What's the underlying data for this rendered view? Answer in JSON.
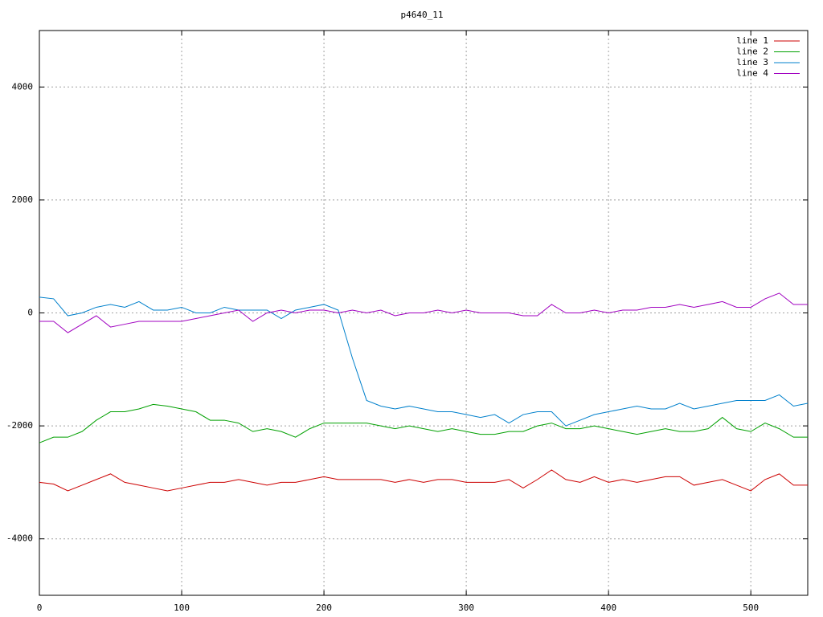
{
  "chart_data": {
    "type": "line",
    "title": "p4640_11",
    "x": [
      0,
      10,
      20,
      30,
      40,
      50,
      60,
      70,
      80,
      90,
      100,
      110,
      120,
      130,
      140,
      150,
      160,
      170,
      180,
      190,
      200,
      210,
      220,
      230,
      240,
      250,
      260,
      270,
      280,
      290,
      300,
      310,
      320,
      330,
      340,
      350,
      360,
      370,
      380,
      390,
      400,
      410,
      420,
      430,
      440,
      450,
      460,
      470,
      480,
      490,
      500,
      510,
      520,
      530,
      540
    ],
    "series": [
      {
        "name": "line 1",
        "color": "#cc0000",
        "values": [
          -3000,
          -3030,
          -3150,
          -3050,
          -2950,
          -2850,
          -3000,
          -3050,
          -3100,
          -3150,
          -3100,
          -3050,
          -3000,
          -3000,
          -2950,
          -3000,
          -3050,
          -3000,
          -3000,
          -2950,
          -2900,
          -2950,
          -2950,
          -2950,
          -2950,
          -3000,
          -2950,
          -3000,
          -2950,
          -2950,
          -3000,
          -3000,
          -3000,
          -2950,
          -3100,
          -2950,
          -2780,
          -2950,
          -3000,
          -2900,
          -3000,
          -2950,
          -3000,
          -2950,
          -2900,
          -2900,
          -3050,
          -3000,
          -2950,
          -3050,
          -3150,
          -2950,
          -2850,
          -3050,
          -3050
        ]
      },
      {
        "name": "line 2",
        "color": "#00a000",
        "values": [
          -2300,
          -2200,
          -2200,
          -2100,
          -1900,
          -1750,
          -1750,
          -1700,
          -1620,
          -1650,
          -1700,
          -1750,
          -1900,
          -1900,
          -1950,
          -2100,
          -2050,
          -2100,
          -2200,
          -2050,
          -1950,
          -1950,
          -1950,
          -1950,
          -2000,
          -2050,
          -2000,
          -2050,
          -2100,
          -2050,
          -2100,
          -2150,
          -2150,
          -2100,
          -2100,
          -2000,
          -1950,
          -2050,
          -2050,
          -2000,
          -2050,
          -2100,
          -2150,
          -2100,
          -2050,
          -2100,
          -2100,
          -2050,
          -1850,
          -2050,
          -2100,
          -1950,
          -2050,
          -2200,
          -2200
        ]
      },
      {
        "name": "line 3",
        "color": "#0080cc",
        "values": [
          280,
          250,
          -50,
          0,
          100,
          150,
          100,
          200,
          50,
          50,
          100,
          0,
          0,
          100,
          50,
          50,
          50,
          -100,
          50,
          100,
          150,
          50,
          -800,
          -1550,
          -1650,
          -1700,
          -1650,
          -1700,
          -1750,
          -1750,
          -1800,
          -1850,
          -1800,
          -1950,
          -1800,
          -1750,
          -1750,
          -2000,
          -1900,
          -1800,
          -1750,
          -1700,
          -1650,
          -1700,
          -1700,
          -1600,
          -1700,
          -1650,
          -1600,
          -1550,
          -1550,
          -1550,
          -1450,
          -1650,
          -1600
        ]
      },
      {
        "name": "line 4",
        "color": "#a000c0",
        "values": [
          -150,
          -150,
          -350,
          -200,
          -50,
          -250,
          -200,
          -150,
          -150,
          -150,
          -150,
          -100,
          -50,
          0,
          50,
          -150,
          0,
          50,
          0,
          50,
          50,
          0,
          50,
          0,
          50,
          -50,
          0,
          0,
          50,
          0,
          50,
          0,
          0,
          0,
          -50,
          -50,
          150,
          0,
          0,
          50,
          0,
          50,
          50,
          100,
          100,
          150,
          100,
          150,
          200,
          100,
          100,
          250,
          350,
          150,
          150
        ]
      }
    ],
    "xlim": [
      0,
      540
    ],
    "xticks": [
      0,
      100,
      200,
      300,
      400,
      500
    ],
    "ylim": [
      -5000,
      5000
    ],
    "yticks": [
      -4000,
      -2000,
      0,
      2000,
      4000
    ],
    "grid": true,
    "legend": "top-right"
  }
}
